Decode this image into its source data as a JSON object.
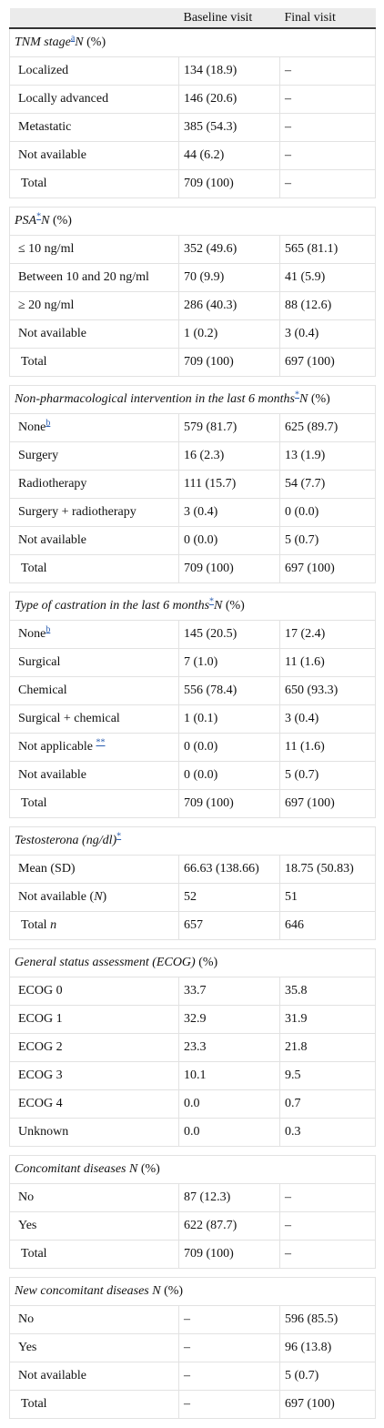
{
  "table": {
    "header": {
      "baseline": "Baseline visit",
      "final": "Final visit"
    },
    "sections": [
      {
        "heading": [
          {
            "text": "TNM stage",
            "style": "i"
          },
          {
            "text": "a",
            "style": "sup"
          },
          {
            "text": "N",
            "style": "i"
          },
          {
            "text": " (%)"
          }
        ],
        "rows": [
          {
            "label": "Localized",
            "baseline": "134 (18.9)",
            "final": "–"
          },
          {
            "label": "Locally advanced",
            "baseline": "146 (20.6)",
            "final": "–"
          },
          {
            "label": "Metastatic",
            "baseline": "385 (54.3)",
            "final": "–"
          },
          {
            "label": "Not available",
            "baseline": "44 (6.2)",
            "final": "–"
          },
          {
            "label": "Total",
            "total": true,
            "baseline": "709 (100)",
            "final": "–"
          }
        ]
      },
      {
        "heading": [
          {
            "text": "PSA",
            "style": "i"
          },
          {
            "text": "*",
            "style": "sup"
          },
          {
            "text": "N",
            "style": "i"
          },
          {
            "text": " (%)"
          }
        ],
        "rows": [
          {
            "label": "≤ 10 ng/ml",
            "baseline": "352 (49.6)",
            "final": "565 (81.1)"
          },
          {
            "label": "Between 10 and 20 ng/ml",
            "baseline": "70 (9.9)",
            "final": "41 (5.9)"
          },
          {
            "label": "≥ 20 ng/ml",
            "baseline": "286 (40.3)",
            "final": "88 (12.6)"
          },
          {
            "label": "Not available",
            "baseline": "1 (0.2)",
            "final": "3 (0.4)"
          },
          {
            "label": "Total",
            "total": true,
            "baseline": "709 (100)",
            "final": "697 (100)"
          }
        ]
      },
      {
        "heading": [
          {
            "text": "Non-pharmacological intervention in the last 6 months",
            "style": "i"
          },
          {
            "text": "*",
            "style": "sup"
          },
          {
            "text": "N",
            "style": "i"
          },
          {
            "text": " (%)"
          }
        ],
        "rows": [
          {
            "label": [
              {
                "text": "None"
              },
              {
                "text": "b",
                "style": "sup"
              }
            ],
            "baseline": "579 (81.7)",
            "final": "625 (89.7)"
          },
          {
            "label": "Surgery",
            "baseline": "16 (2.3)",
            "final": "13 (1.9)"
          },
          {
            "label": "Radiotherapy",
            "baseline": "111 (15.7)",
            "final": "54 (7.7)"
          },
          {
            "label": "Surgery + radiotherapy",
            "baseline": "3 (0.4)",
            "final": "0 (0.0)"
          },
          {
            "label": "Not available",
            "baseline": "0 (0.0)",
            "final": "5 (0.7)"
          },
          {
            "label": "Total",
            "total": true,
            "baseline": "709 (100)",
            "final": "697 (100)"
          }
        ]
      },
      {
        "heading": [
          {
            "text": "Type of castration in the last 6 months",
            "style": "i"
          },
          {
            "text": "*",
            "style": "sup"
          },
          {
            "text": "N",
            "style": "i"
          },
          {
            "text": " (%)"
          }
        ],
        "rows": [
          {
            "label": [
              {
                "text": "None"
              },
              {
                "text": "b",
                "style": "sup"
              }
            ],
            "baseline": "145 (20.5)",
            "final": "17 (2.4)"
          },
          {
            "label": "Surgical",
            "baseline": "7 (1.0)",
            "final": "11 (1.6)"
          },
          {
            "label": "Chemical",
            "baseline": "556 (78.4)",
            "final": "650 (93.3)"
          },
          {
            "label": "Surgical + chemical",
            "baseline": "1 (0.1)",
            "final": "3 (0.4)"
          },
          {
            "label": [
              {
                "text": "Not applicable "
              },
              {
                "text": "**",
                "style": "sup"
              }
            ],
            "baseline": "0 (0.0)",
            "final": "11 (1.6)"
          },
          {
            "label": "Not available",
            "baseline": "0 (0.0)",
            "final": "5 (0.7)"
          },
          {
            "label": "Total",
            "total": true,
            "baseline": "709 (100)",
            "final": "697 (100)"
          }
        ]
      },
      {
        "heading": [
          {
            "text": "Testosterona (ng/dl)",
            "style": "i"
          },
          {
            "text": "*",
            "style": "sup"
          }
        ],
        "rows": [
          {
            "label": "Mean (SD)",
            "baseline": "66.63 (138.66)",
            "final": "18.75 (50.83)"
          },
          {
            "label": [
              {
                "text": "Not available ("
              },
              {
                "text": "N",
                "style": "i"
              },
              {
                "text": ")"
              }
            ],
            "baseline": "52",
            "final": "51"
          },
          {
            "label": [
              {
                "text": "Total "
              },
              {
                "text": "n",
                "style": "i"
              }
            ],
            "total": true,
            "baseline": "657",
            "final": "646"
          }
        ]
      },
      {
        "heading": [
          {
            "text": "General status assessment (ECOG)",
            "style": "i"
          },
          {
            "text": " (%)"
          }
        ],
        "rows": [
          {
            "label": "ECOG 0",
            "baseline": "33.7",
            "final": "35.8"
          },
          {
            "label": "ECOG 1",
            "baseline": "32.9",
            "final": "31.9"
          },
          {
            "label": "ECOG 2",
            "baseline": "23.3",
            "final": "21.8"
          },
          {
            "label": "ECOG 3",
            "baseline": "10.1",
            "final": "9.5"
          },
          {
            "label": "ECOG 4",
            "baseline": "0.0",
            "final": "0.7"
          },
          {
            "label": "Unknown",
            "baseline": "0.0",
            "final": "0.3"
          }
        ]
      },
      {
        "heading": [
          {
            "text": "Concomitant diseases N",
            "style": "i"
          },
          {
            "text": " (%)"
          }
        ],
        "rows": [
          {
            "label": "No",
            "baseline": "87 (12.3)",
            "final": "–"
          },
          {
            "label": "Yes",
            "baseline": "622 (87.7)",
            "final": "–"
          },
          {
            "label": "Total",
            "total": true,
            "baseline": "709 (100)",
            "final": "–"
          }
        ]
      },
      {
        "heading": [
          {
            "text": "New concomitant diseases N",
            "style": "i"
          },
          {
            "text": " (%)"
          }
        ],
        "rows": [
          {
            "label": "No",
            "baseline": "–",
            "final": "596 (85.5)"
          },
          {
            "label": "Yes",
            "baseline": "–",
            "final": "96 (13.8)"
          },
          {
            "label": "Not available",
            "baseline": "–",
            "final": "5 (0.7)"
          },
          {
            "label": "Total",
            "total": true,
            "baseline": "–",
            "final": "697 (100)"
          }
        ]
      }
    ]
  }
}
